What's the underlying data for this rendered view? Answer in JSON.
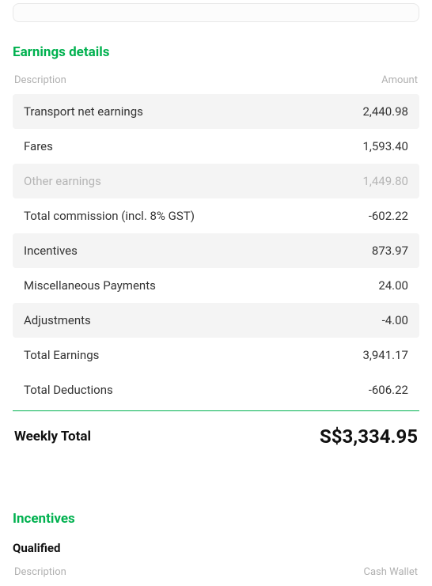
{
  "earnings": {
    "title": "Earnings details",
    "header_description": "Description",
    "header_amount": "Amount",
    "rows": [
      {
        "desc": "Transport net earnings",
        "amt": "2,440.98"
      },
      {
        "desc": "Fares",
        "amt": "1,593.40"
      },
      {
        "desc": "Other earnings",
        "amt": "1,449.80"
      },
      {
        "desc": "Total commission (incl. 8% GST)",
        "amt": "-602.22"
      },
      {
        "desc": "Incentives",
        "amt": "873.97"
      },
      {
        "desc": "Miscellaneous Payments",
        "amt": "24.00"
      },
      {
        "desc": "Adjustments",
        "amt": "-4.00"
      },
      {
        "desc": "Total Earnings",
        "amt": "3,941.17"
      },
      {
        "desc": "Total Deductions",
        "amt": "-606.22"
      }
    ],
    "total_label": "Weekly Total",
    "total_amount": "S$3,334.95"
  },
  "incentives": {
    "title": "Incentives",
    "subtitle": "Qualified",
    "header_description": "Description",
    "header_right": "Cash Wallet"
  },
  "style": {
    "accent_color": "#00b14f",
    "shaded_bg": "#f4f4f4",
    "muted_text": "#b5b5b5",
    "text_color": "#333333",
    "header_text": "#b0b0b0",
    "background": "#ffffff"
  }
}
